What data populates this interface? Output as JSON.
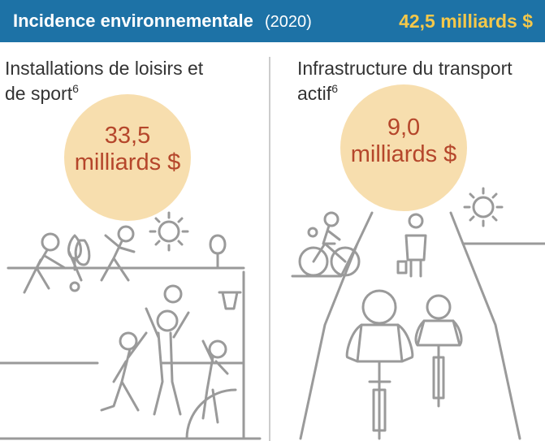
{
  "header": {
    "title": "Incidence environnementale",
    "year": "(2020)",
    "total": "42,5 milliards $"
  },
  "panels": [
    {
      "title_line1": "Installations de loisirs et",
      "title_line2": "de sport",
      "note": "6",
      "amount": "33,5",
      "unit": "milliards $"
    },
    {
      "title_line1": "Infrastructure du transport",
      "title_line2": "actif",
      "note": "6",
      "amount": "9,0",
      "unit": "milliards $"
    }
  ]
}
